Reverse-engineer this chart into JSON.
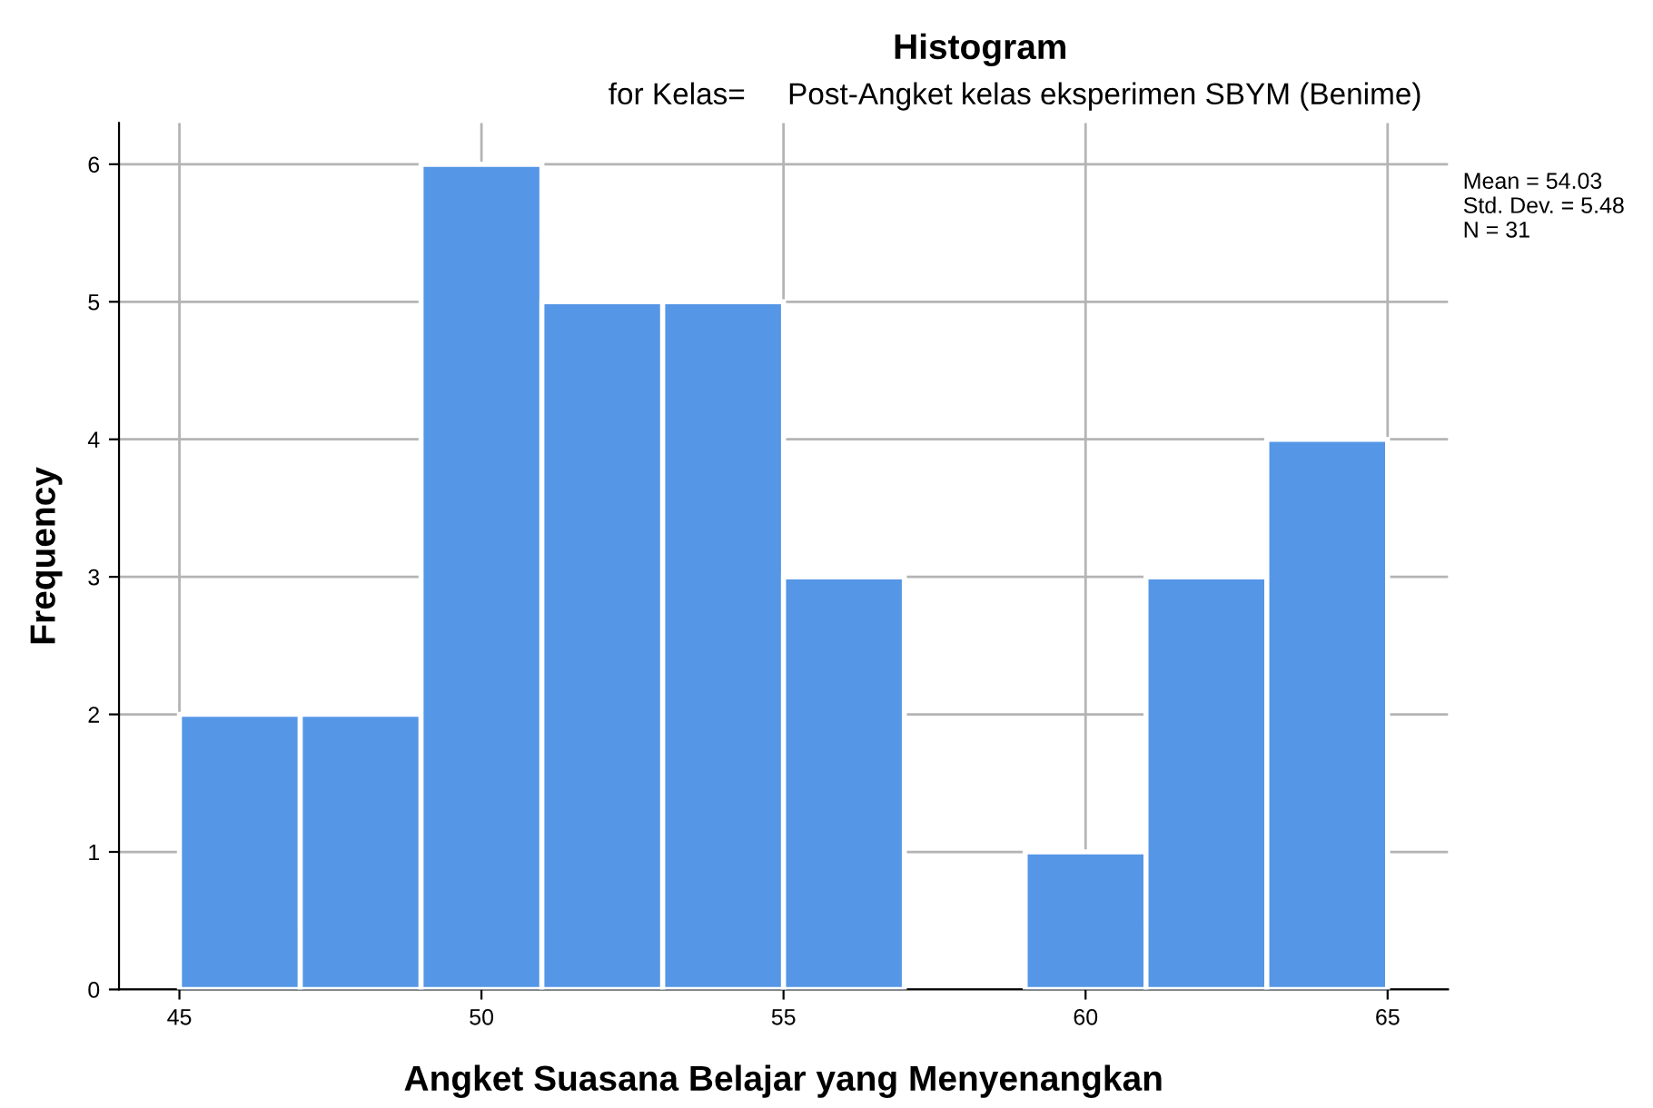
{
  "chart_data": {
    "type": "histogram",
    "title": "Histogram",
    "subtitle": "for Kelas=     Post-Angket kelas eksperimen SBYM (Benime)",
    "xlabel": "Angket Suasana Belajar yang Menyenangkan",
    "ylabel": "Frequency",
    "bins": [
      45,
      47,
      49,
      51,
      53,
      55,
      57,
      59,
      61,
      63,
      65
    ],
    "values": [
      2,
      2,
      6,
      5,
      5,
      3,
      0,
      1,
      3,
      4
    ],
    "color": "#5596e6",
    "xlim": [
      44,
      66
    ],
    "xticks": [
      45,
      50,
      55,
      60,
      65
    ],
    "ylim": [
      0,
      6.3
    ],
    "yticks": [
      0,
      1,
      2,
      3,
      4,
      5,
      6
    ],
    "grid": true,
    "annotations": [
      "Mean = 54.03",
      "Std. Dev. = 5.48",
      "N = 31"
    ]
  }
}
